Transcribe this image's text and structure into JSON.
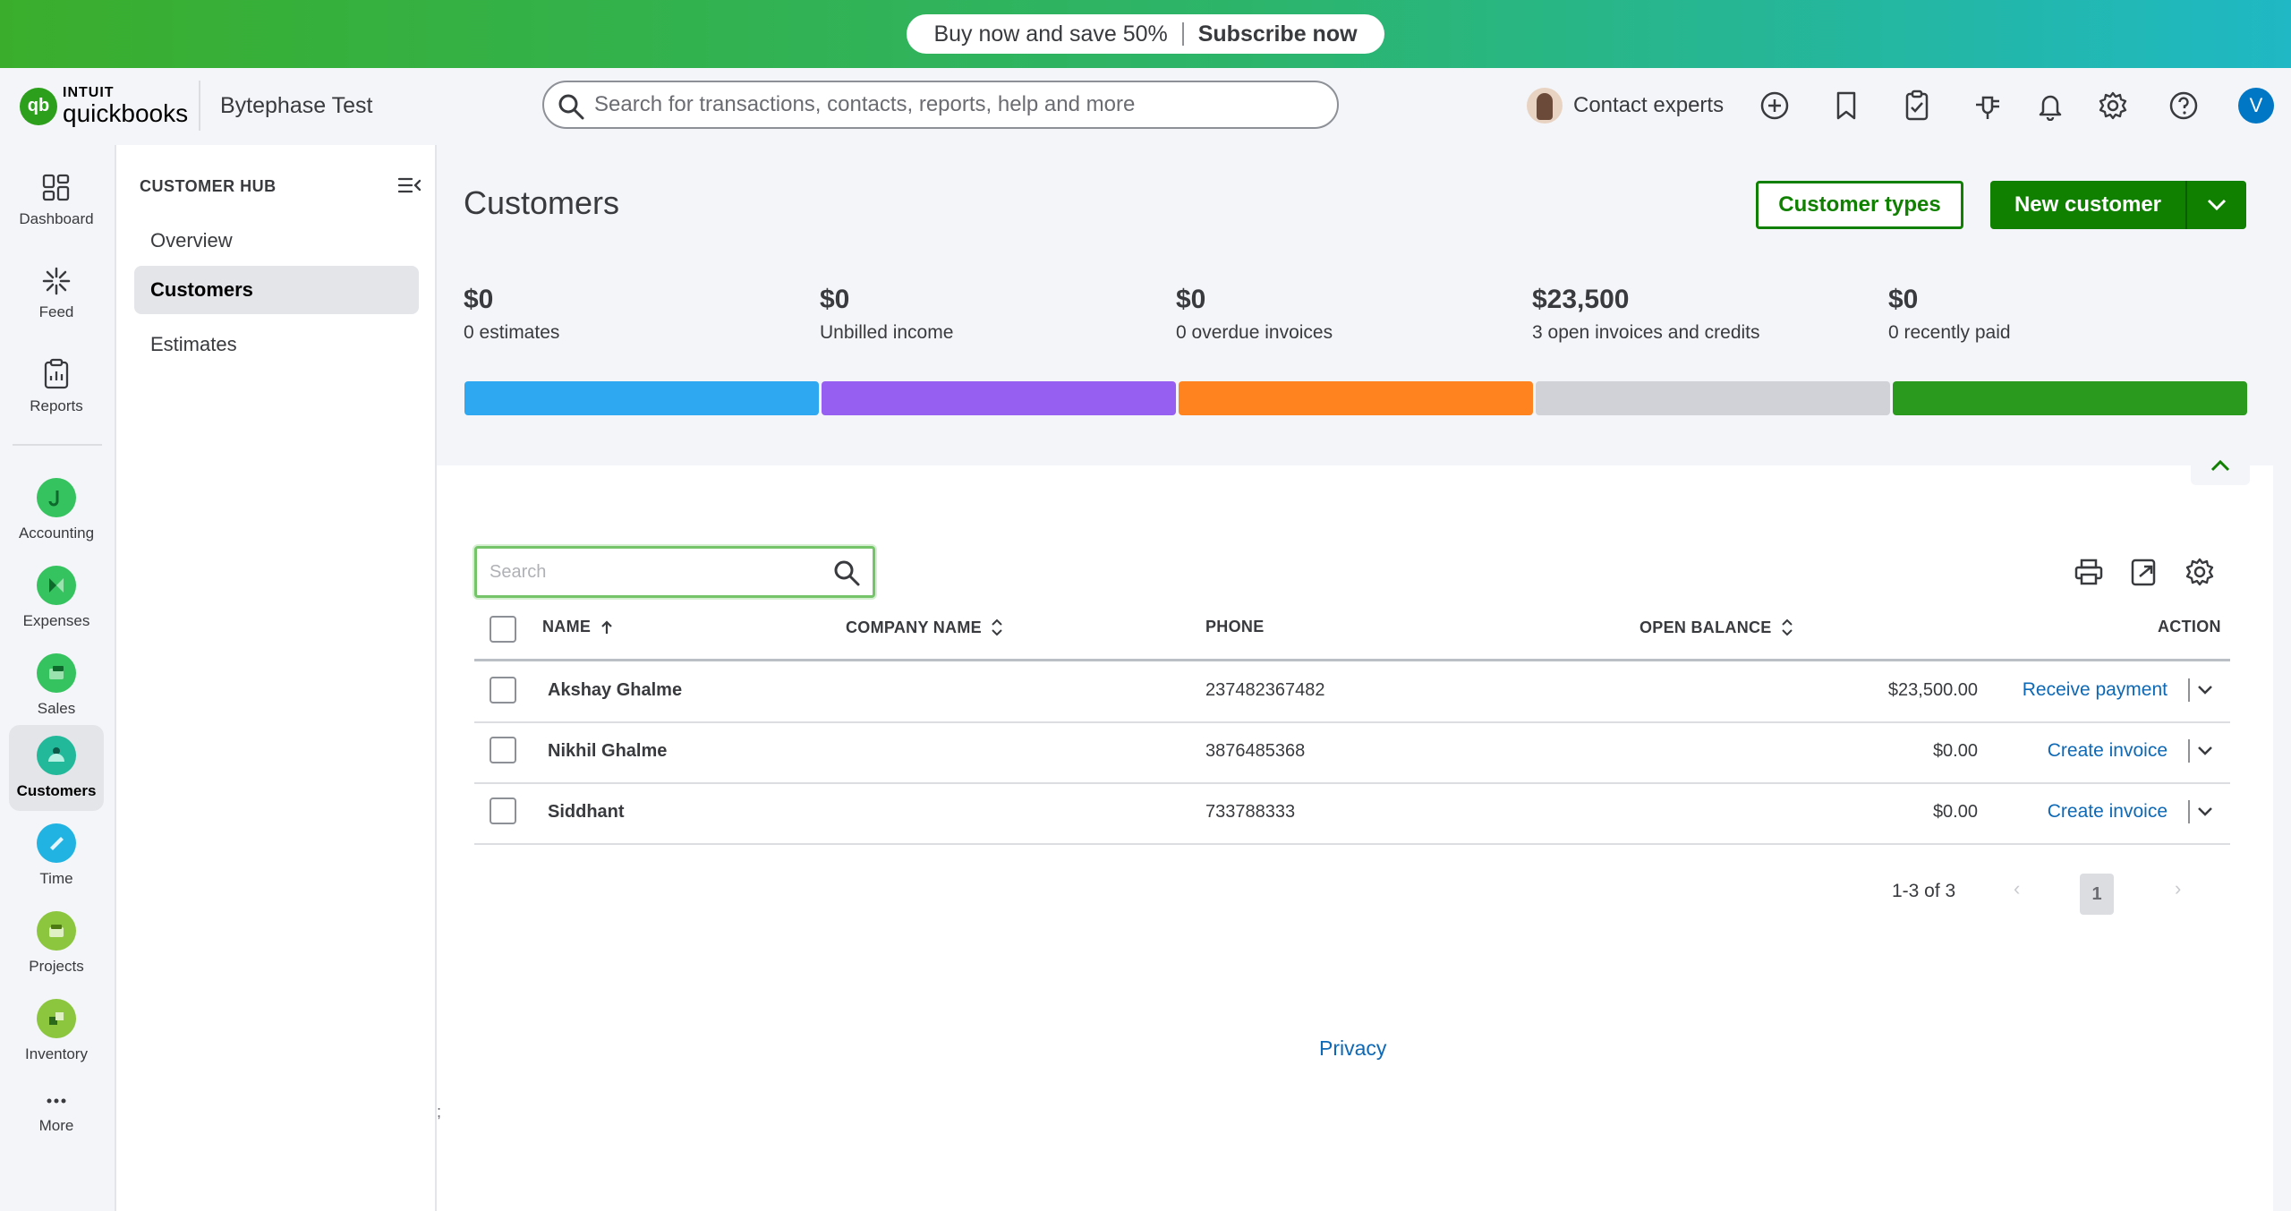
{
  "promo": {
    "text": "Buy now and save 50%",
    "cta": "Subscribe now"
  },
  "header": {
    "logo_intuit": "INTUIT",
    "logo_qb": "quickbooks",
    "company": "Bytephase Test",
    "search_placeholder": "Search for transactions, contacts, reports, help and more",
    "contact_experts": "Contact experts",
    "user_initial": "V"
  },
  "rail": {
    "items": [
      {
        "label": "Dashboard",
        "icon": "dashboard-icon"
      },
      {
        "label": "Feed",
        "icon": "feed-icon"
      },
      {
        "label": "Reports",
        "icon": "reports-icon"
      },
      {
        "label": "Accounting",
        "icon": "accounting-icon"
      },
      {
        "label": "Expenses",
        "icon": "expenses-icon"
      },
      {
        "label": "Sales",
        "icon": "sales-icon"
      },
      {
        "label": "Customers",
        "icon": "customers-icon"
      },
      {
        "label": "Time",
        "icon": "time-icon"
      },
      {
        "label": "Projects",
        "icon": "projects-icon"
      },
      {
        "label": "Inventory",
        "icon": "inventory-icon"
      },
      {
        "label": "More",
        "icon": "more-icon"
      }
    ]
  },
  "hub": {
    "title": "CUSTOMER HUB",
    "items": [
      {
        "label": "Overview"
      },
      {
        "label": "Customers"
      },
      {
        "label": "Estimates"
      }
    ]
  },
  "main": {
    "title": "Customers",
    "customer_types": "Customer types",
    "new_customer": "New customer",
    "stats": [
      {
        "amount": "$0",
        "desc": "0 estimates",
        "color": "#2ea8f0"
      },
      {
        "amount": "$0",
        "desc": "Unbilled income",
        "color": "#965ff2"
      },
      {
        "amount": "$0",
        "desc": "0 overdue invoices",
        "color": "#ff8420"
      },
      {
        "amount": "$23,500",
        "desc": "3 open invoices and credits",
        "color": "#d0d2d7"
      },
      {
        "amount": "$0",
        "desc": "0 recently paid",
        "color": "#2a9a1e"
      }
    ]
  },
  "table": {
    "search_placeholder": "Search",
    "headers": {
      "name": "NAME",
      "company": "COMPANY NAME",
      "phone": "PHONE",
      "balance": "OPEN BALANCE",
      "action": "ACTION"
    },
    "rows": [
      {
        "name": "Akshay Ghalme",
        "company": "",
        "phone": "237482367482",
        "balance": "$23,500.00",
        "action": "Receive payment"
      },
      {
        "name": "Nikhil Ghalme",
        "company": "",
        "phone": "3876485368",
        "balance": "$0.00",
        "action": "Create invoice"
      },
      {
        "name": "Siddhant",
        "company": "",
        "phone": "733788333",
        "balance": "$0.00",
        "action": "Create invoice"
      }
    ],
    "pager": {
      "summary": "1-3 of 3",
      "page": "1",
      "prev": "‹",
      "next": "›"
    }
  },
  "footer": {
    "privacy": "Privacy",
    "stray": ";"
  }
}
